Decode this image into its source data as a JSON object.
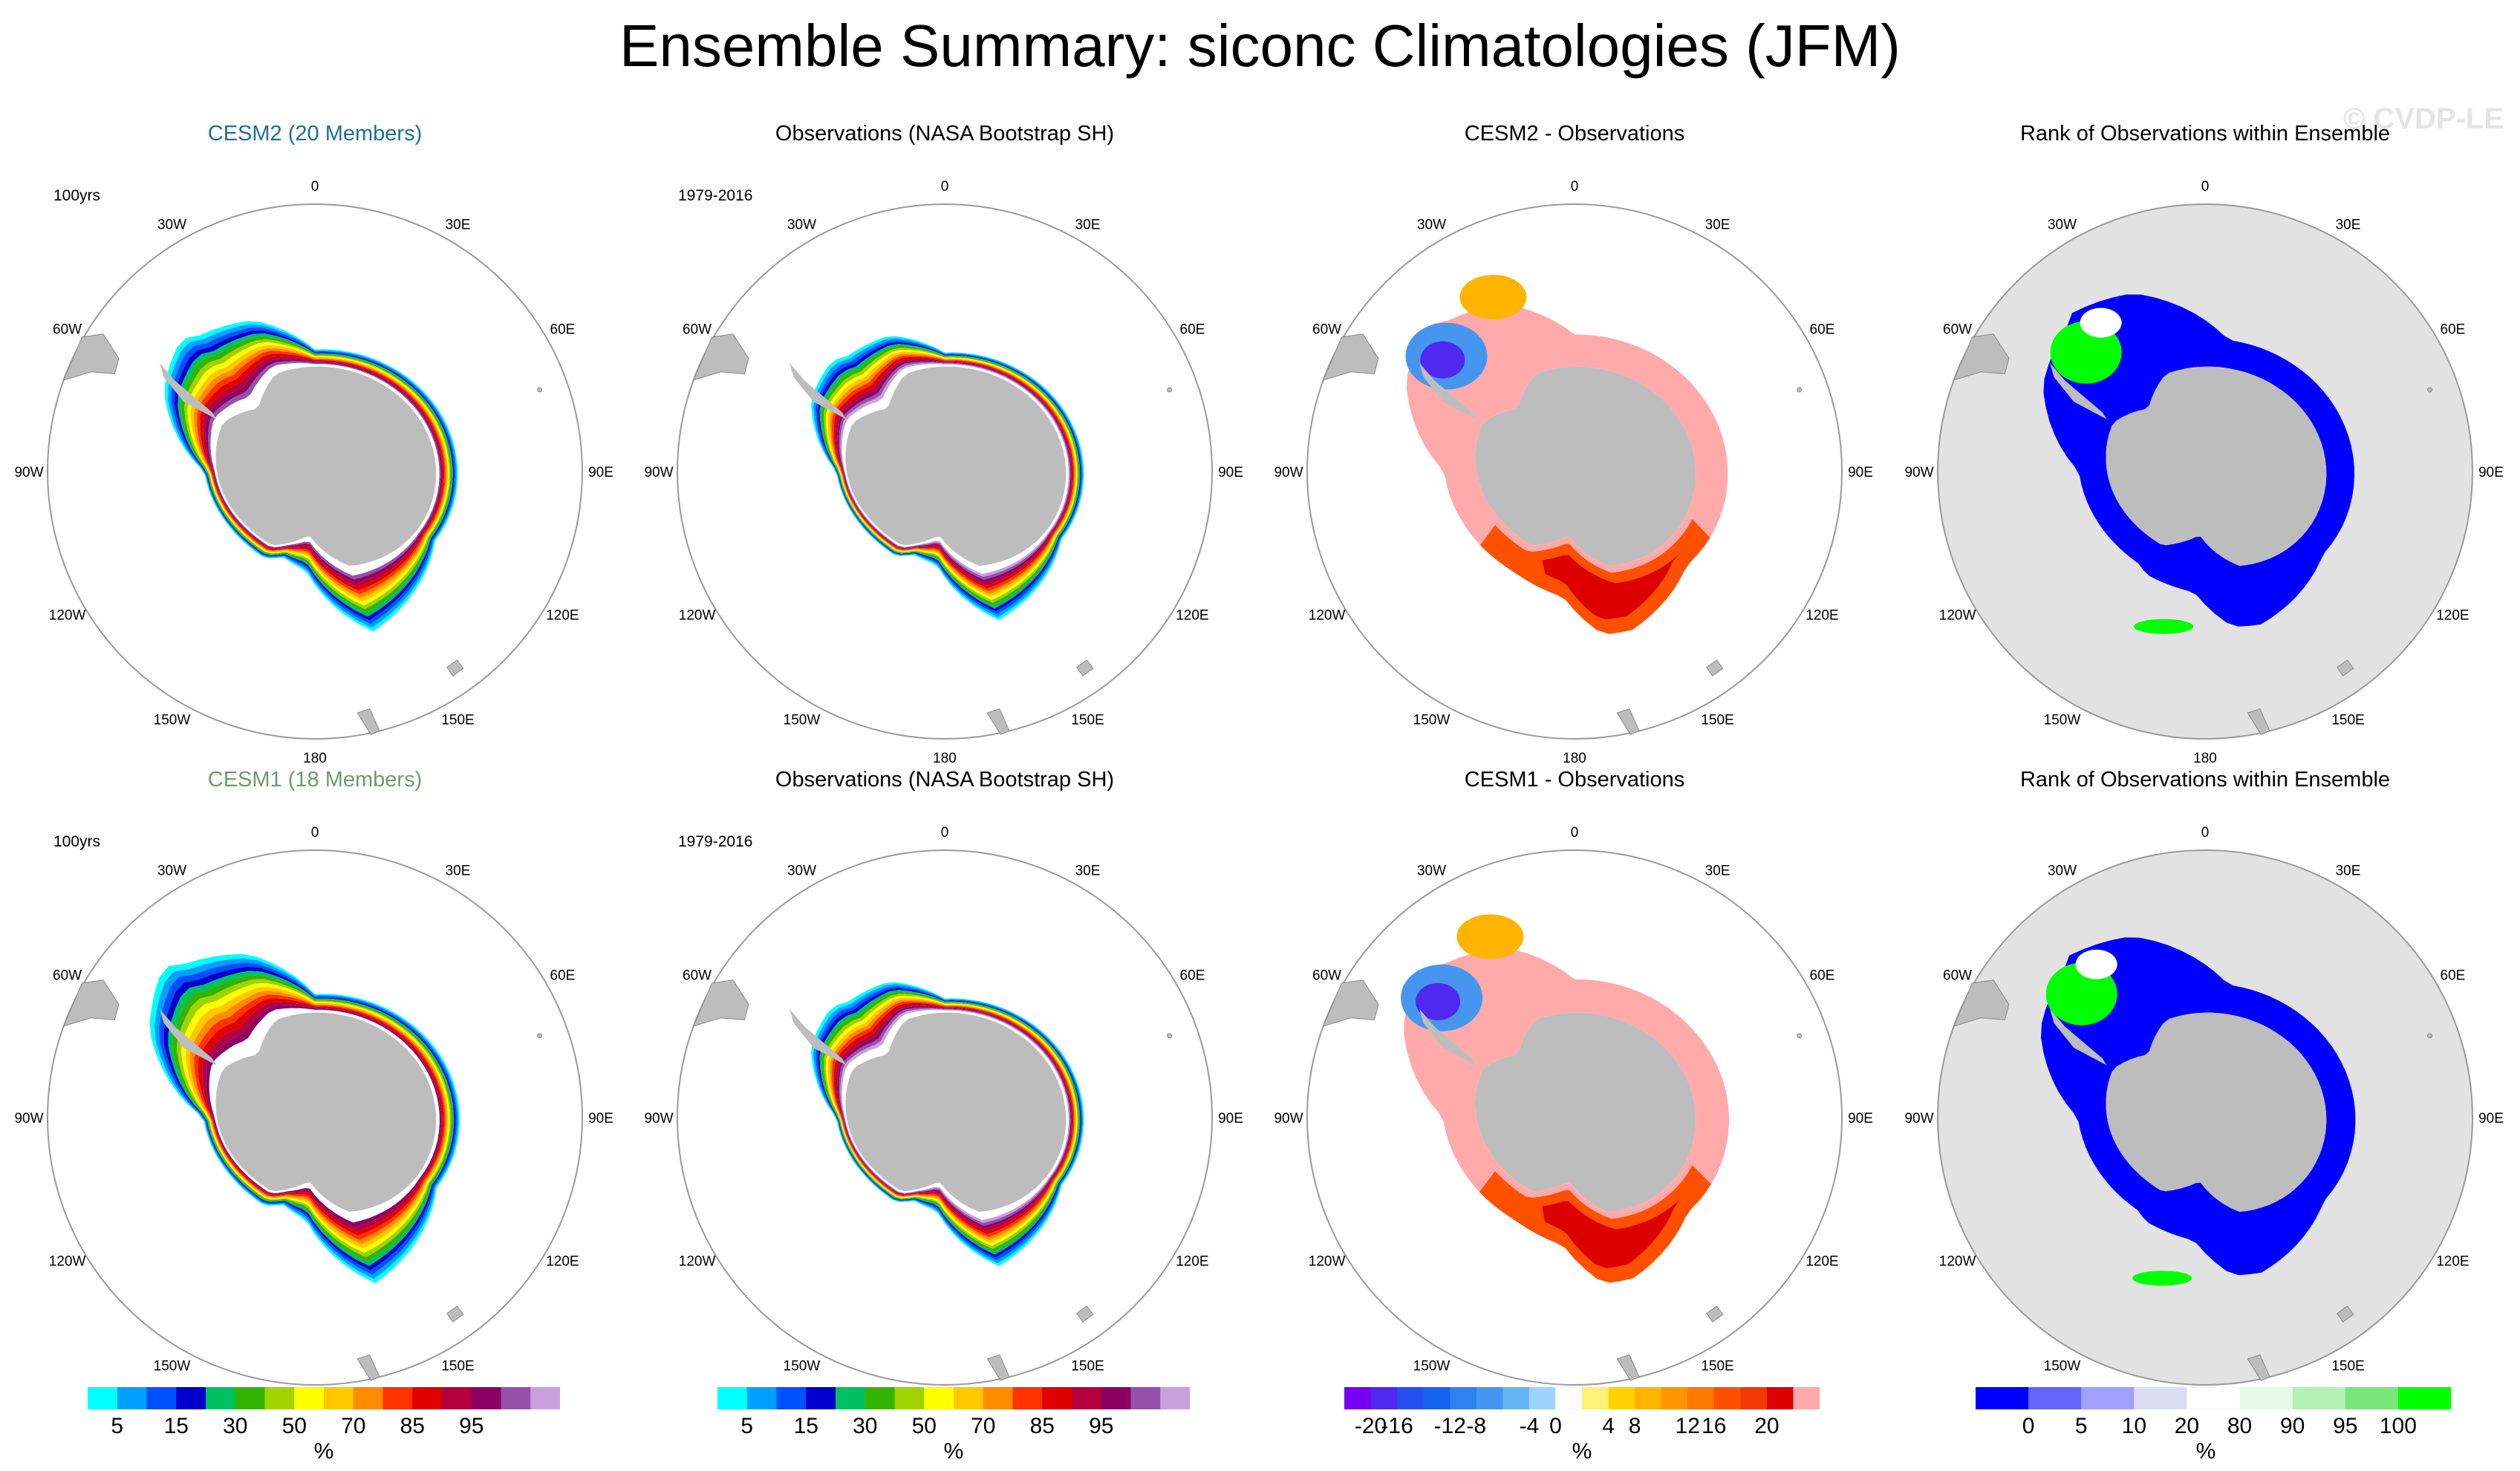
{
  "figure": {
    "title": "Ensemble Summary: siconc Climatologies (JFM)",
    "watermark": "© CVDP-LE"
  },
  "chart_data": {
    "type": "heatmap",
    "projection": "south polar stereographic",
    "lon_labels": [
      "0",
      "30E",
      "60E",
      "90E",
      "120E",
      "150E",
      "180",
      "150W",
      "120W",
      "90W",
      "60W",
      "30W"
    ],
    "panels": [
      {
        "id": "cesm2-mean",
        "row": 1,
        "col": 1,
        "title": "CESM2 (20 Members)",
        "title_color": "#1e6f96",
        "period": "100yrs",
        "kind": "concentration",
        "scale": 1.15,
        "peninsula_bulge": 0.85,
        "weddell_max": 92
      },
      {
        "id": "obs-top",
        "row": 1,
        "col": 2,
        "title": "Observations (NASA Bootstrap SH)",
        "title_color": "#000000",
        "period": "1979-2016",
        "kind": "concentration",
        "scale": 0.95,
        "peninsula_bulge": 0.7,
        "weddell_max": 98
      },
      {
        "id": "cesm2-minus-obs",
        "row": 1,
        "col": 3,
        "title": "CESM2 - Observations",
        "title_color": "#000000",
        "period": "",
        "kind": "difference",
        "scale": 1.08
      },
      {
        "id": "rank-top",
        "row": 1,
        "col": 4,
        "title": "Rank of Observations within Ensemble",
        "title_color": "#000000",
        "period": "",
        "kind": "rank",
        "scale": 1.08
      },
      {
        "id": "cesm1-mean",
        "row": 2,
        "col": 1,
        "title": "CESM1 (18 Members)",
        "title_color": "#6f9a6f",
        "period": "100yrs",
        "kind": "concentration",
        "scale": 1.25,
        "peninsula_bulge": 1.0,
        "weddell_max": 85
      },
      {
        "id": "obs-bottom",
        "row": 2,
        "col": 2,
        "title": "Observations (NASA Bootstrap SH)",
        "title_color": "#000000",
        "period": "1979-2016",
        "kind": "concentration",
        "scale": 0.95,
        "peninsula_bulge": 0.7,
        "weddell_max": 98
      },
      {
        "id": "cesm1-minus-obs",
        "row": 2,
        "col": 3,
        "title": "CESM1 - Observations",
        "title_color": "#000000",
        "period": "",
        "kind": "difference",
        "scale": 1.12
      },
      {
        "id": "rank-bottom",
        "row": 2,
        "col": 4,
        "title": "Rank of Observations within Ensemble",
        "title_color": "#000000",
        "period": "",
        "kind": "rank",
        "scale": 1.12
      }
    ],
    "colorbars": [
      {
        "id": "cb-conc-1",
        "unit": "%",
        "ticks": [
          "5",
          "15",
          "30",
          "50",
          "70",
          "85",
          "95"
        ],
        "colors": [
          "#00ffff",
          "#00a0ff",
          "#0050ff",
          "#0000cd",
          "#00c060",
          "#32b400",
          "#a0d200",
          "#ffff00",
          "#ffc800",
          "#ff8c00",
          "#ff3200",
          "#e00000",
          "#b4003c",
          "#8c0064",
          "#9650aa",
          "#c8a0dc"
        ]
      },
      {
        "id": "cb-conc-2",
        "unit": "%",
        "ticks": [
          "5",
          "15",
          "30",
          "50",
          "70",
          "85",
          "95"
        ],
        "colors": [
          "#00ffff",
          "#00a0ff",
          "#0050ff",
          "#0000cd",
          "#00c060",
          "#32b400",
          "#a0d200",
          "#ffff00",
          "#ffc800",
          "#ff8c00",
          "#ff3200",
          "#e00000",
          "#b4003c",
          "#8c0064",
          "#9650aa",
          "#c8a0dc"
        ]
      },
      {
        "id": "cb-diff",
        "unit": "%",
        "ticks": [
          "-20",
          "-16",
          "-12",
          "-8",
          "-4",
          "0",
          "4",
          "8",
          "12",
          "16",
          "20"
        ],
        "colors": [
          "#7800f0",
          "#5028f0",
          "#2850f0",
          "#1464f0",
          "#2d82f0",
          "#4696f0",
          "#64b4f0",
          "#a0d2ff",
          "#ffffff",
          "#fff078",
          "#ffd200",
          "#ffb400",
          "#ff9600",
          "#ff7800",
          "#ff5000",
          "#f03c00",
          "#dc0000",
          "#ffaaaa"
        ]
      },
      {
        "id": "cb-rank",
        "unit": "%",
        "ticks": [
          "0",
          "5",
          "10",
          "20",
          "80",
          "90",
          "95",
          "100"
        ],
        "colors": [
          "#0000ff",
          "#6464ff",
          "#a0a0ff",
          "#dcdcf5",
          "#ffffff",
          "#e6fae6",
          "#b4f0b4",
          "#78e678",
          "#00ff00"
        ]
      }
    ]
  },
  "colors": {
    "land": "#bdbdbd",
    "ocean": "#ffffff",
    "rank_ocean": "#e2e2e2",
    "circle": "#9a9a9a"
  }
}
